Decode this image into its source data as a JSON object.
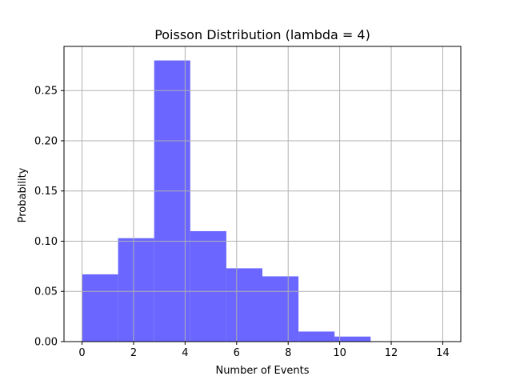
{
  "chart_data": {
    "type": "bar",
    "title": "Poisson Distribution (lambda = 4)",
    "xlabel": "Number of Events",
    "ylabel": "Probability",
    "xlim": [
      -0.7,
      14.7
    ],
    "ylim": [
      0,
      0.294
    ],
    "xticks": [
      0,
      2,
      4,
      6,
      8,
      10,
      12,
      14
    ],
    "xtick_labels": [
      "0",
      "2",
      "4",
      "6",
      "8",
      "10",
      "12",
      "14"
    ],
    "yticks": [
      0,
      0.05,
      0.1,
      0.15,
      0.2,
      0.25
    ],
    "ytick_labels": [
      "0.00",
      "0.05",
      "0.10",
      "0.15",
      "0.20",
      "0.25"
    ],
    "grid": true,
    "bar_color": "#6a66ff",
    "bins": [
      {
        "x0": 0.0,
        "x1": 1.4,
        "value": 0.067
      },
      {
        "x0": 1.4,
        "x1": 2.8,
        "value": 0.103
      },
      {
        "x0": 2.8,
        "x1": 4.2,
        "value": 0.28
      },
      {
        "x0": 4.2,
        "x1": 5.6,
        "value": 0.11
      },
      {
        "x0": 5.6,
        "x1": 7.0,
        "value": 0.073
      },
      {
        "x0": 7.0,
        "x1": 8.4,
        "value": 0.065
      },
      {
        "x0": 8.4,
        "x1": 9.8,
        "value": 0.01
      },
      {
        "x0": 9.8,
        "x1": 11.2,
        "value": 0.005
      },
      {
        "x0": 11.2,
        "x1": 12.6,
        "value": 0.0
      },
      {
        "x0": 12.6,
        "x1": 14.0,
        "value": 0.0
      }
    ]
  }
}
